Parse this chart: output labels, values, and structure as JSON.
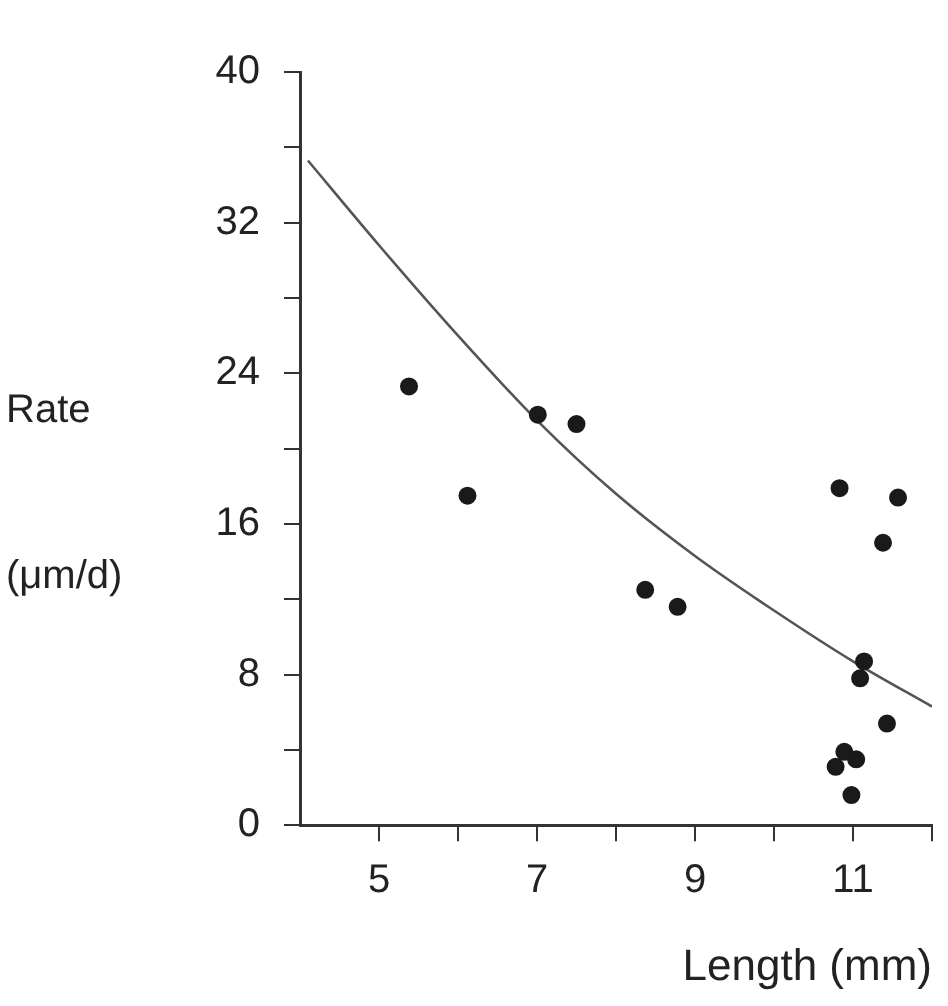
{
  "chart_data": {
    "type": "scatter",
    "xlabel": "Length (mm)",
    "ylabel": "Rate (μm/d)",
    "xlim": [
      4,
      12
    ],
    "ylim": [
      0,
      40
    ],
    "xticks": [
      5,
      {
        "value": 6,
        "label": null
      },
      7,
      {
        "value": 8,
        "label": null
      },
      9,
      {
        "value": 10,
        "label": null
      },
      11,
      {
        "value": 12,
        "label": null
      }
    ],
    "yticks": [
      0,
      {
        "value": 4,
        "label": null
      },
      8,
      {
        "value": 12,
        "label": null
      },
      16,
      {
        "value": 20,
        "label": null
      },
      24,
      {
        "value": 28,
        "label": null
      },
      32,
      {
        "value": 36,
        "label": null
      },
      40
    ],
    "grid": false,
    "legend": false,
    "marker": "circle",
    "series": [
      {
        "color": "#1a1a1a",
        "x": [
          5.38,
          6.12,
          7.01,
          7.5,
          8.37,
          8.78,
          10.83,
          11.57,
          11.38,
          11.14,
          11.09,
          11.43,
          10.89,
          11.04,
          10.78,
          10.98
        ],
        "values": [
          23.3,
          17.5,
          21.8,
          21.3,
          12.5,
          11.6,
          17.9,
          17.4,
          15.0,
          8.7,
          7.8,
          5.4,
          3.9,
          3.5,
          3.1,
          1.6
        ]
      },
      {
        "type": "line",
        "color": "#555555",
        "marker": "none",
        "x": [
          4.1,
          5,
          6,
          7,
          8,
          9,
          10,
          11,
          12
        ],
        "values": [
          35.3,
          30.8,
          26.0,
          21.5,
          17.6,
          14.3,
          11.4,
          8.7,
          6.3
        ]
      }
    ]
  }
}
